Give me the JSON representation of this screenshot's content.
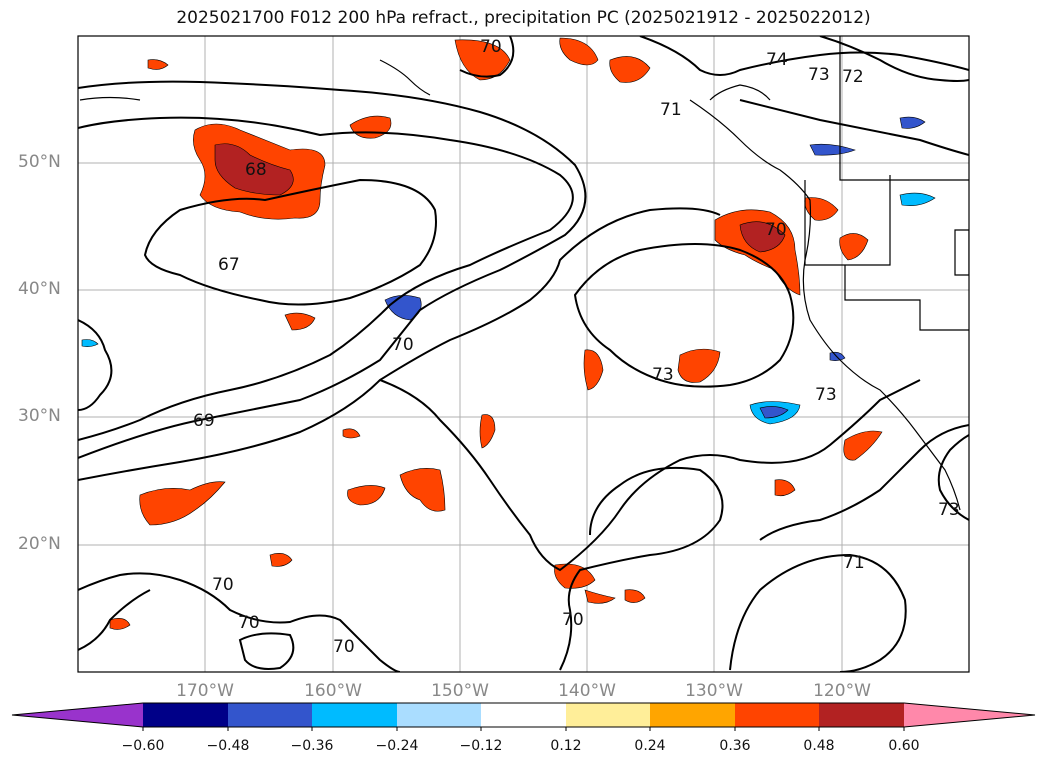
{
  "title": "2025021700 F012 200 hPa refract., precipitation PC (2025021912 - 2025022012)",
  "map": {
    "lat_labels": [
      "50°N",
      "40°N",
      "30°N",
      "20°N"
    ],
    "lon_labels": [
      "170°W",
      "160°W",
      "150°W",
      "140°W",
      "130°W",
      "120°W"
    ],
    "contour_labels": [
      "68",
      "67",
      "69",
      "70",
      "70",
      "70",
      "70",
      "70",
      "70",
      "71",
      "71",
      "72",
      "73",
      "73",
      "73",
      "73",
      "74",
      "70"
    ],
    "contour_color": "#000000",
    "grid_color": "#b0b0b0"
  },
  "colorbar": {
    "tick_labels": [
      "−0.60",
      "−0.48",
      "−0.36",
      "−0.24",
      "−0.12",
      "0.12",
      "0.24",
      "0.36",
      "0.48",
      "0.60"
    ],
    "colors": [
      "#9933cc",
      "#000088",
      "#3355cc",
      "#00bbff",
      "#aaddff",
      "#ffffff",
      "#ffee99",
      "#ffa500",
      "#ff4400",
      "#b22222",
      "#ff88aa"
    ]
  }
}
